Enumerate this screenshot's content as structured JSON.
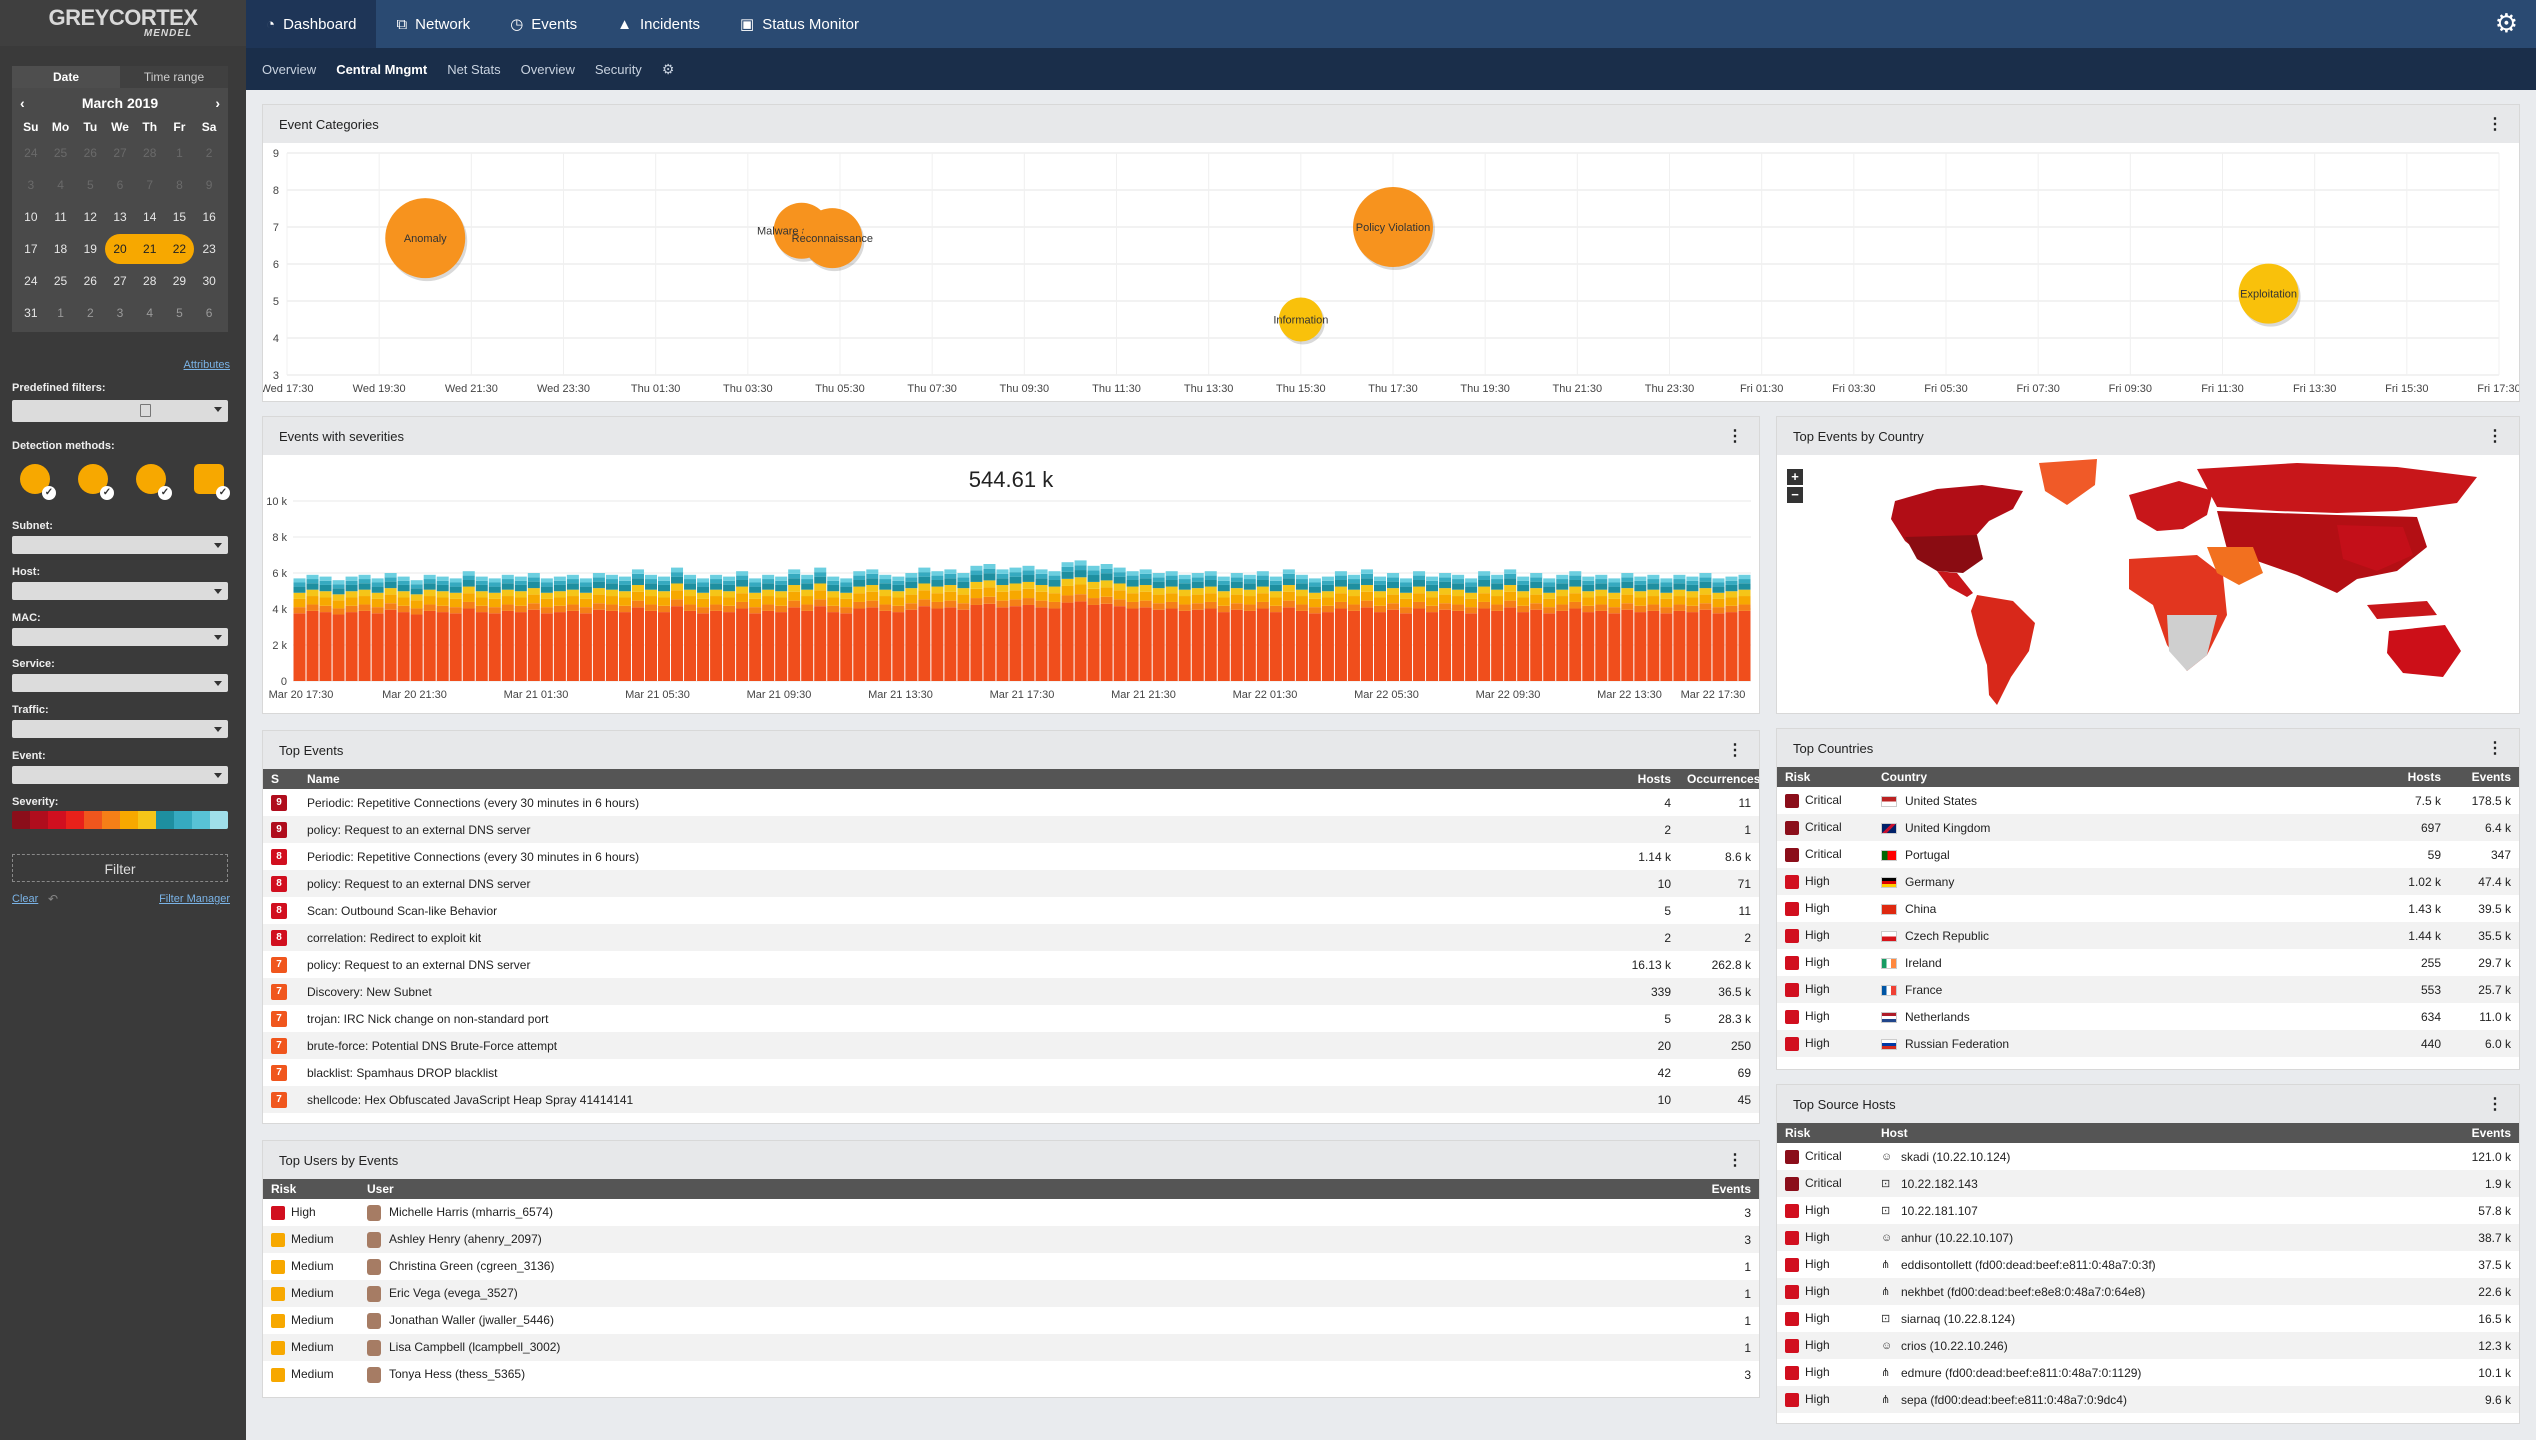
{
  "brand": {
    "line1": "GREYCORTEX",
    "line2": "MENDEL"
  },
  "nav": {
    "tabs": [
      {
        "label": "Dashboard",
        "icon": "dashboard-icon"
      },
      {
        "label": "Network",
        "icon": "network-icon"
      },
      {
        "label": "Events",
        "icon": "clock-icon"
      },
      {
        "label": "Incidents",
        "icon": "warning-icon"
      },
      {
        "label": "Status Monitor",
        "icon": "monitor-icon"
      }
    ],
    "subtabs": [
      "Overview",
      "Central Mngmt",
      "Net Stats",
      "Overview",
      "Security"
    ]
  },
  "calendar": {
    "tab_date": "Date",
    "tab_range": "Time range",
    "month": "March 2019",
    "prev": "‹",
    "next": "›",
    "weekdays": [
      "Su",
      "Mo",
      "Tu",
      "We",
      "Th",
      "Fr",
      "Sa"
    ],
    "weeks": [
      [
        "24",
        "25",
        "26",
        "27",
        "28",
        "1",
        "2"
      ],
      [
        "3",
        "4",
        "5",
        "6",
        "7",
        "8",
        "9"
      ],
      [
        "10",
        "11",
        "12",
        "13",
        "14",
        "15",
        "16"
      ],
      [
        "17",
        "18",
        "19",
        "20",
        "21",
        "22",
        "23"
      ],
      [
        "24",
        "25",
        "26",
        "27",
        "28",
        "29",
        "30"
      ],
      [
        "31",
        "1",
        "2",
        "3",
        "4",
        "5",
        "6"
      ]
    ]
  },
  "filters": {
    "attributes": "Attributes",
    "predefined": "Predefined filters:",
    "detection": "Detection methods:",
    "subnet": "Subnet:",
    "host": "Host:",
    "mac": "MAC:",
    "service": "Service:",
    "traffic": "Traffic:",
    "event": "Event:",
    "severity": "Severity:",
    "filter_btn": "Filter",
    "clear": "Clear",
    "filter_manager": "Filter Manager",
    "detection_icons": [
      "brain-icon",
      "fingerprint-icon",
      "biohazard-icon",
      "medkit-icon"
    ],
    "severity_colors": [
      "#8b0e1a",
      "#b00d1d",
      "#d10f1f",
      "#e8211a",
      "#f0561d",
      "#f57f17",
      "#f7a800",
      "#f5c518",
      "#1e8fa0",
      "#36aac0",
      "#58c2d6",
      "#9fdfea"
    ]
  },
  "event_categories": {
    "title": "Event Categories",
    "menu": "⋮",
    "chart_data": {
      "type": "scatter",
      "title": "",
      "xlabel": "",
      "ylabel": "",
      "ylim": [
        3,
        9
      ],
      "yticks": [
        "3",
        "4",
        "5",
        "6",
        "7",
        "8",
        "9"
      ],
      "xticks": [
        "Wed 17:30",
        "Wed 19:30",
        "Wed 21:30",
        "Wed 23:30",
        "Thu 01:30",
        "Thu 03:30",
        "Thu 05:30",
        "Thu 07:30",
        "Thu 09:30",
        "Thu 11:30",
        "Thu 13:30",
        "Thu 15:30",
        "Thu 17:30",
        "Thu 19:30",
        "Thu 21:30",
        "Thu 23:30",
        "Fri 01:30",
        "Fri 03:30",
        "Fri 05:30",
        "Fri 07:30",
        "Fri 09:30",
        "Fri 11:30",
        "Fri 13:30",
        "Fri 15:30",
        "Fri 17:30"
      ],
      "points": [
        {
          "label": "Anomaly",
          "x": "Wed 20:30",
          "y": 6.7,
          "size": 40,
          "color": "#f7931e"
        },
        {
          "label": "Malware and C&C",
          "x": "Thu 04:40",
          "y": 6.9,
          "size": 28,
          "color": "#f7931e"
        },
        {
          "label": "Reconnaissance",
          "x": "Thu 05:20",
          "y": 6.7,
          "size": 30,
          "color": "#f7931e"
        },
        {
          "label": "Information",
          "x": "Thu 15:30",
          "y": 4.5,
          "size": 22,
          "color": "#f9c10b"
        },
        {
          "label": "Policy Violation",
          "x": "Thu 17:30",
          "y": 7.0,
          "size": 40,
          "color": "#f7931e"
        },
        {
          "label": "Exploitation",
          "x": "Fri 12:30",
          "y": 5.2,
          "size": 30,
          "color": "#f9c10b"
        }
      ]
    }
  },
  "events_severities": {
    "title": "Events with severities",
    "menu": "⋮",
    "total": "544.61 k",
    "chart_data": {
      "type": "bar",
      "title": "",
      "xlabel": "",
      "ylabel": "",
      "stacked": true,
      "ylim": [
        0,
        10000
      ],
      "yticks": [
        "0",
        "2 k",
        "4 k",
        "6 k",
        "8 k",
        "10 k"
      ],
      "xticks": [
        "Mar 20 17:30",
        "Mar 20 21:30",
        "Mar 21 01:30",
        "Mar 21 05:30",
        "Mar 21 09:30",
        "Mar 21 13:30",
        "Mar 21 17:30",
        "Mar 21 21:30",
        "Mar 22 01:30",
        "Mar 22 05:30",
        "Mar 22 09:30",
        "Mar 22 13:30",
        "Mar 22 17:30"
      ],
      "totals": [
        5700,
        5900,
        5800,
        5600,
        5800,
        5900,
        5700,
        6000,
        5800,
        5600,
        5900,
        5800,
        5700,
        6100,
        5800,
        5700,
        5900,
        5800,
        6000,
        5700,
        5800,
        5900,
        5700,
        6000,
        5900,
        5800,
        6200,
        5900,
        5800,
        6300,
        5900,
        5700,
        5900,
        5800,
        6100,
        5700,
        5900,
        5800,
        6200,
        5900,
        6300,
        5800,
        5700,
        6100,
        6200,
        5900,
        5800,
        6000,
        6300,
        6100,
        6200,
        6000,
        6400,
        6500,
        6200,
        6300,
        6400,
        6200,
        6100,
        6600,
        6700,
        6400,
        6500,
        6300,
        6100,
        6200,
        6000,
        6100,
        5900,
        6000,
        6100,
        5800,
        6000,
        5900,
        6100,
        5800,
        6200,
        5900,
        5700,
        5800,
        6100,
        5900,
        6200,
        5800,
        6000,
        5700,
        6100,
        5800,
        6000,
        5900,
        5700,
        6100,
        5900,
        6200,
        5800,
        6000,
        5700,
        5900,
        6100,
        5800,
        5900,
        5700,
        6000,
        5800,
        5900,
        5700,
        5900,
        5800,
        6000,
        5700,
        5800,
        5900
      ],
      "shares": [
        0.66,
        0.06,
        0.08,
        0.06,
        0.06,
        0.04,
        0.04
      ],
      "colors": [
        "#f04e1c",
        "#f57f17",
        "#f7a800",
        "#f5c518",
        "#1e8fa0",
        "#36aac0",
        "#6ccfe0"
      ]
    }
  },
  "top_events_country": {
    "title": "Top Events by Country",
    "menu": "⋮",
    "zoom_in": "+",
    "zoom_out": "−"
  },
  "top_events": {
    "title": "Top Events",
    "menu": "⋮",
    "headers": [
      "S",
      "Name",
      "Hosts",
      "Occurrences"
    ],
    "rows": [
      {
        "s": "9",
        "name": "Periodic: Repetitive Connections (every 30 minutes in 6 hours)",
        "hosts": "4",
        "occ": "11",
        "color": "#b00d1d"
      },
      {
        "s": "9",
        "name": "policy: Request to an external DNS server",
        "hosts": "2",
        "occ": "1",
        "color": "#b00d1d"
      },
      {
        "s": "8",
        "name": "Periodic: Repetitive Connections (every 30 minutes in 6 hours)",
        "hosts": "1.14 k",
        "occ": "8.6 k",
        "color": "#d10f1f"
      },
      {
        "s": "8",
        "name": "policy: Request to an external DNS server",
        "hosts": "10",
        "occ": "71",
        "color": "#d10f1f"
      },
      {
        "s": "8",
        "name": "Scan: Outbound Scan-like Behavior",
        "hosts": "5",
        "occ": "11",
        "color": "#d10f1f"
      },
      {
        "s": "8",
        "name": "correlation: Redirect to exploit kit",
        "hosts": "2",
        "occ": "2",
        "color": "#d10f1f"
      },
      {
        "s": "7",
        "name": "policy: Request to an external DNS server",
        "hosts": "16.13 k",
        "occ": "262.8 k",
        "color": "#f0561d"
      },
      {
        "s": "7",
        "name": "Discovery: New Subnet",
        "hosts": "339",
        "occ": "36.5 k",
        "color": "#f0561d"
      },
      {
        "s": "7",
        "name": "trojan: IRC Nick change on non-standard port",
        "hosts": "5",
        "occ": "28.3 k",
        "color": "#f0561d"
      },
      {
        "s": "7",
        "name": "brute-force: Potential DNS Brute-Force attempt",
        "hosts": "20",
        "occ": "250",
        "color": "#f0561d"
      },
      {
        "s": "7",
        "name": "blacklist: Spamhaus DROP blacklist",
        "hosts": "42",
        "occ": "69",
        "color": "#f0561d"
      },
      {
        "s": "7",
        "name": "shellcode: Hex Obfuscated JavaScript Heap Spray 41414141",
        "hosts": "10",
        "occ": "45",
        "color": "#f0561d"
      }
    ]
  },
  "top_countries": {
    "title": "Top Countries",
    "menu": "⋮",
    "headers": [
      "Risk",
      "Country",
      "Hosts",
      "Events"
    ],
    "rows": [
      {
        "risk": "Critical",
        "country": "United States",
        "hosts": "7.5 k",
        "events": "178.5 k",
        "color": "#8b0e1a"
      },
      {
        "risk": "Critical",
        "country": "United Kingdom",
        "hosts": "697",
        "events": "6.4 k",
        "color": "#8b0e1a"
      },
      {
        "risk": "Critical",
        "country": "Portugal",
        "hosts": "59",
        "events": "347",
        "color": "#8b0e1a"
      },
      {
        "risk": "High",
        "country": "Germany",
        "hosts": "1.02 k",
        "events": "47.4 k",
        "color": "#d10f1f"
      },
      {
        "risk": "High",
        "country": "China",
        "hosts": "1.43 k",
        "events": "39.5 k",
        "color": "#d10f1f"
      },
      {
        "risk": "High",
        "country": "Czech Republic",
        "hosts": "1.44 k",
        "events": "35.5 k",
        "color": "#d10f1f"
      },
      {
        "risk": "High",
        "country": "Ireland",
        "hosts": "255",
        "events": "29.7 k",
        "color": "#d10f1f"
      },
      {
        "risk": "High",
        "country": "France",
        "hosts": "553",
        "events": "25.7 k",
        "color": "#d10f1f"
      },
      {
        "risk": "High",
        "country": "Netherlands",
        "hosts": "634",
        "events": "11.0 k",
        "color": "#d10f1f"
      },
      {
        "risk": "High",
        "country": "Russian Federation",
        "hosts": "440",
        "events": "6.0 k",
        "color": "#d10f1f"
      }
    ]
  },
  "top_users": {
    "title": "Top Users by Events",
    "menu": "⋮",
    "headers": [
      "Risk",
      "User",
      "Events"
    ],
    "rows": [
      {
        "risk": "High",
        "user": "Michelle Harris (mharris_6574)",
        "events": "3",
        "color": "#d10f1f"
      },
      {
        "risk": "Medium",
        "user": "Ashley Henry (ahenry_2097)",
        "events": "3",
        "color": "#f7a800"
      },
      {
        "risk": "Medium",
        "user": "Christina Green (cgreen_3136)",
        "events": "1",
        "color": "#f7a800"
      },
      {
        "risk": "Medium",
        "user": "Eric Vega (evega_3527)",
        "events": "1",
        "color": "#f7a800"
      },
      {
        "risk": "Medium",
        "user": "Jonathan Waller (jwaller_5446)",
        "events": "1",
        "color": "#f7a800"
      },
      {
        "risk": "Medium",
        "user": "Lisa Campbell (lcampbell_3002)",
        "events": "1",
        "color": "#f7a800"
      },
      {
        "risk": "Medium",
        "user": "Tonya Hess (thess_5365)",
        "events": "3",
        "color": "#f7a800"
      }
    ]
  },
  "top_hosts": {
    "title": "Top Source Hosts",
    "menu": "⋮",
    "headers": [
      "Risk",
      "Host",
      "Events"
    ],
    "rows": [
      {
        "risk": "Critical",
        "host": "skadi (10.22.10.124)",
        "events": "121.0 k",
        "color": "#8b0e1a",
        "icon": "person-icon"
      },
      {
        "risk": "Critical",
        "host": "10.22.182.143",
        "events": "1.9 k",
        "color": "#8b0e1a",
        "icon": "network-host-icon"
      },
      {
        "risk": "High",
        "host": "10.22.181.107",
        "events": "57.8 k",
        "color": "#d10f1f",
        "icon": "network-host-icon"
      },
      {
        "risk": "High",
        "host": "anhur (10.22.10.107)",
        "events": "38.7 k",
        "color": "#d10f1f",
        "icon": "person-icon"
      },
      {
        "risk": "High",
        "host": "eddisontollett (fd00:dead:beef:e811:0:48a7:0:3f)",
        "events": "37.5 k",
        "color": "#d10f1f",
        "icon": "hierarchy-icon"
      },
      {
        "risk": "High",
        "host": "nekhbet (fd00:dead:beef:e8e8:0:48a7:0:64e8)",
        "events": "22.6 k",
        "color": "#d10f1f",
        "icon": "hierarchy-icon"
      },
      {
        "risk": "High",
        "host": "siarnaq (10.22.8.124)",
        "events": "16.5 k",
        "color": "#d10f1f",
        "icon": "network-host-icon"
      },
      {
        "risk": "High",
        "host": "crios (10.22.10.246)",
        "events": "12.3 k",
        "color": "#d10f1f",
        "icon": "person-icon"
      },
      {
        "risk": "High",
        "host": "edmure (fd00:dead:beef:e811:0:48a7:0:1129)",
        "events": "10.1 k",
        "color": "#d10f1f",
        "icon": "hierarchy-icon"
      },
      {
        "risk": "High",
        "host": "sepa (fd00:dead:beef:e811:0:48a7:0:9dc4)",
        "events": "9.6 k",
        "color": "#d10f1f",
        "icon": "hierarchy-icon"
      }
    ]
  }
}
